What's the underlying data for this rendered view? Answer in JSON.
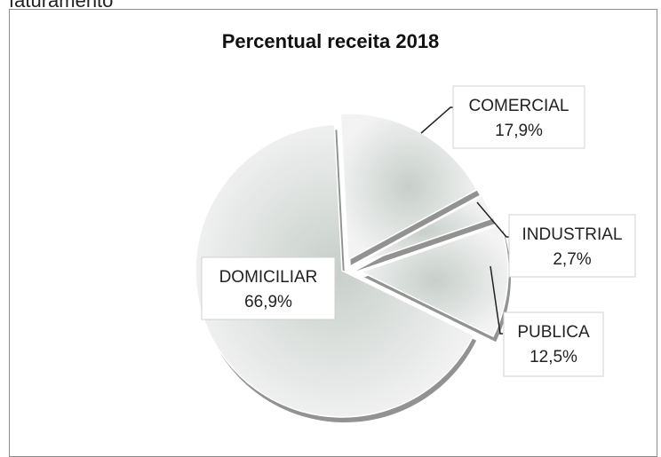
{
  "header_fragment": "faturamento",
  "chart_data": {
    "type": "pie",
    "title": "Percentual receita 2018",
    "categories": [
      "COMERCIAL",
      "INDUSTRIAL",
      "PUBLICA",
      "DOMICILIAR"
    ],
    "values": [
      17.9,
      2.7,
      12.5,
      66.9
    ],
    "value_labels": [
      "17,9%",
      "2,7%",
      "12,5%",
      "66,9%"
    ],
    "exploded": true,
    "legend": "none",
    "colors": {
      "fill_center": "#cfd5d1",
      "fill_edge": "#f2f2f2",
      "shadow": "#6e6e6e"
    }
  }
}
